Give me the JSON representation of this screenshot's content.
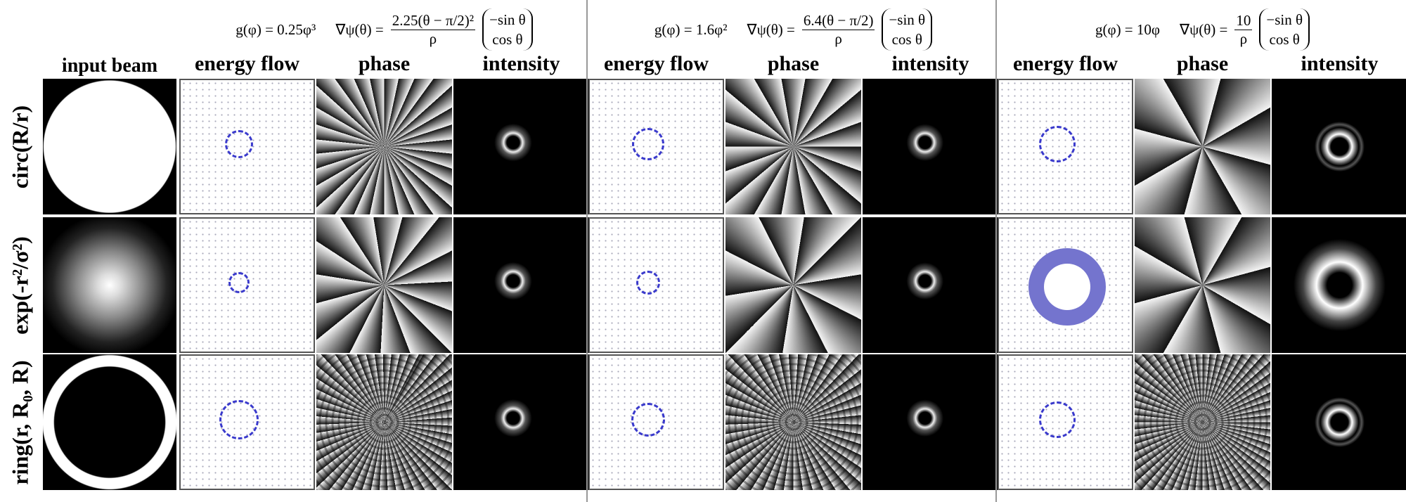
{
  "header": {
    "input_beam": "input beam"
  },
  "rows": [
    {
      "label": "circ(R/r)"
    },
    {
      "label": "exp(-r²/σ²)"
    },
    {
      "label": "ring(r, R₀, R)"
    }
  ],
  "groups": [
    {
      "g": "g(φ) = 0.25φ³",
      "grad_lhs": "∇ψ(θ) =",
      "numerator": "2.25(θ − π/2)²",
      "denominator": "ρ",
      "vector": [
        "−sin θ",
        "cos θ"
      ],
      "columns": [
        "energy flow",
        "phase",
        "intensity"
      ]
    },
    {
      "g": "g(φ) = 1.6φ²",
      "grad_lhs": "∇ψ(θ) =",
      "numerator": "6.4(θ − π/2)",
      "denominator": "ρ",
      "vector": [
        "−sin θ",
        "cos θ"
      ],
      "columns": [
        "energy flow",
        "phase",
        "intensity"
      ]
    },
    {
      "g": "g(φ) = 10φ",
      "grad_lhs": "∇ψ(θ) =",
      "numerator": "10",
      "denominator": "ρ",
      "vector": [
        "−sin θ",
        "cos θ"
      ],
      "columns": [
        "energy flow",
        "phase",
        "intensity"
      ]
    }
  ]
}
